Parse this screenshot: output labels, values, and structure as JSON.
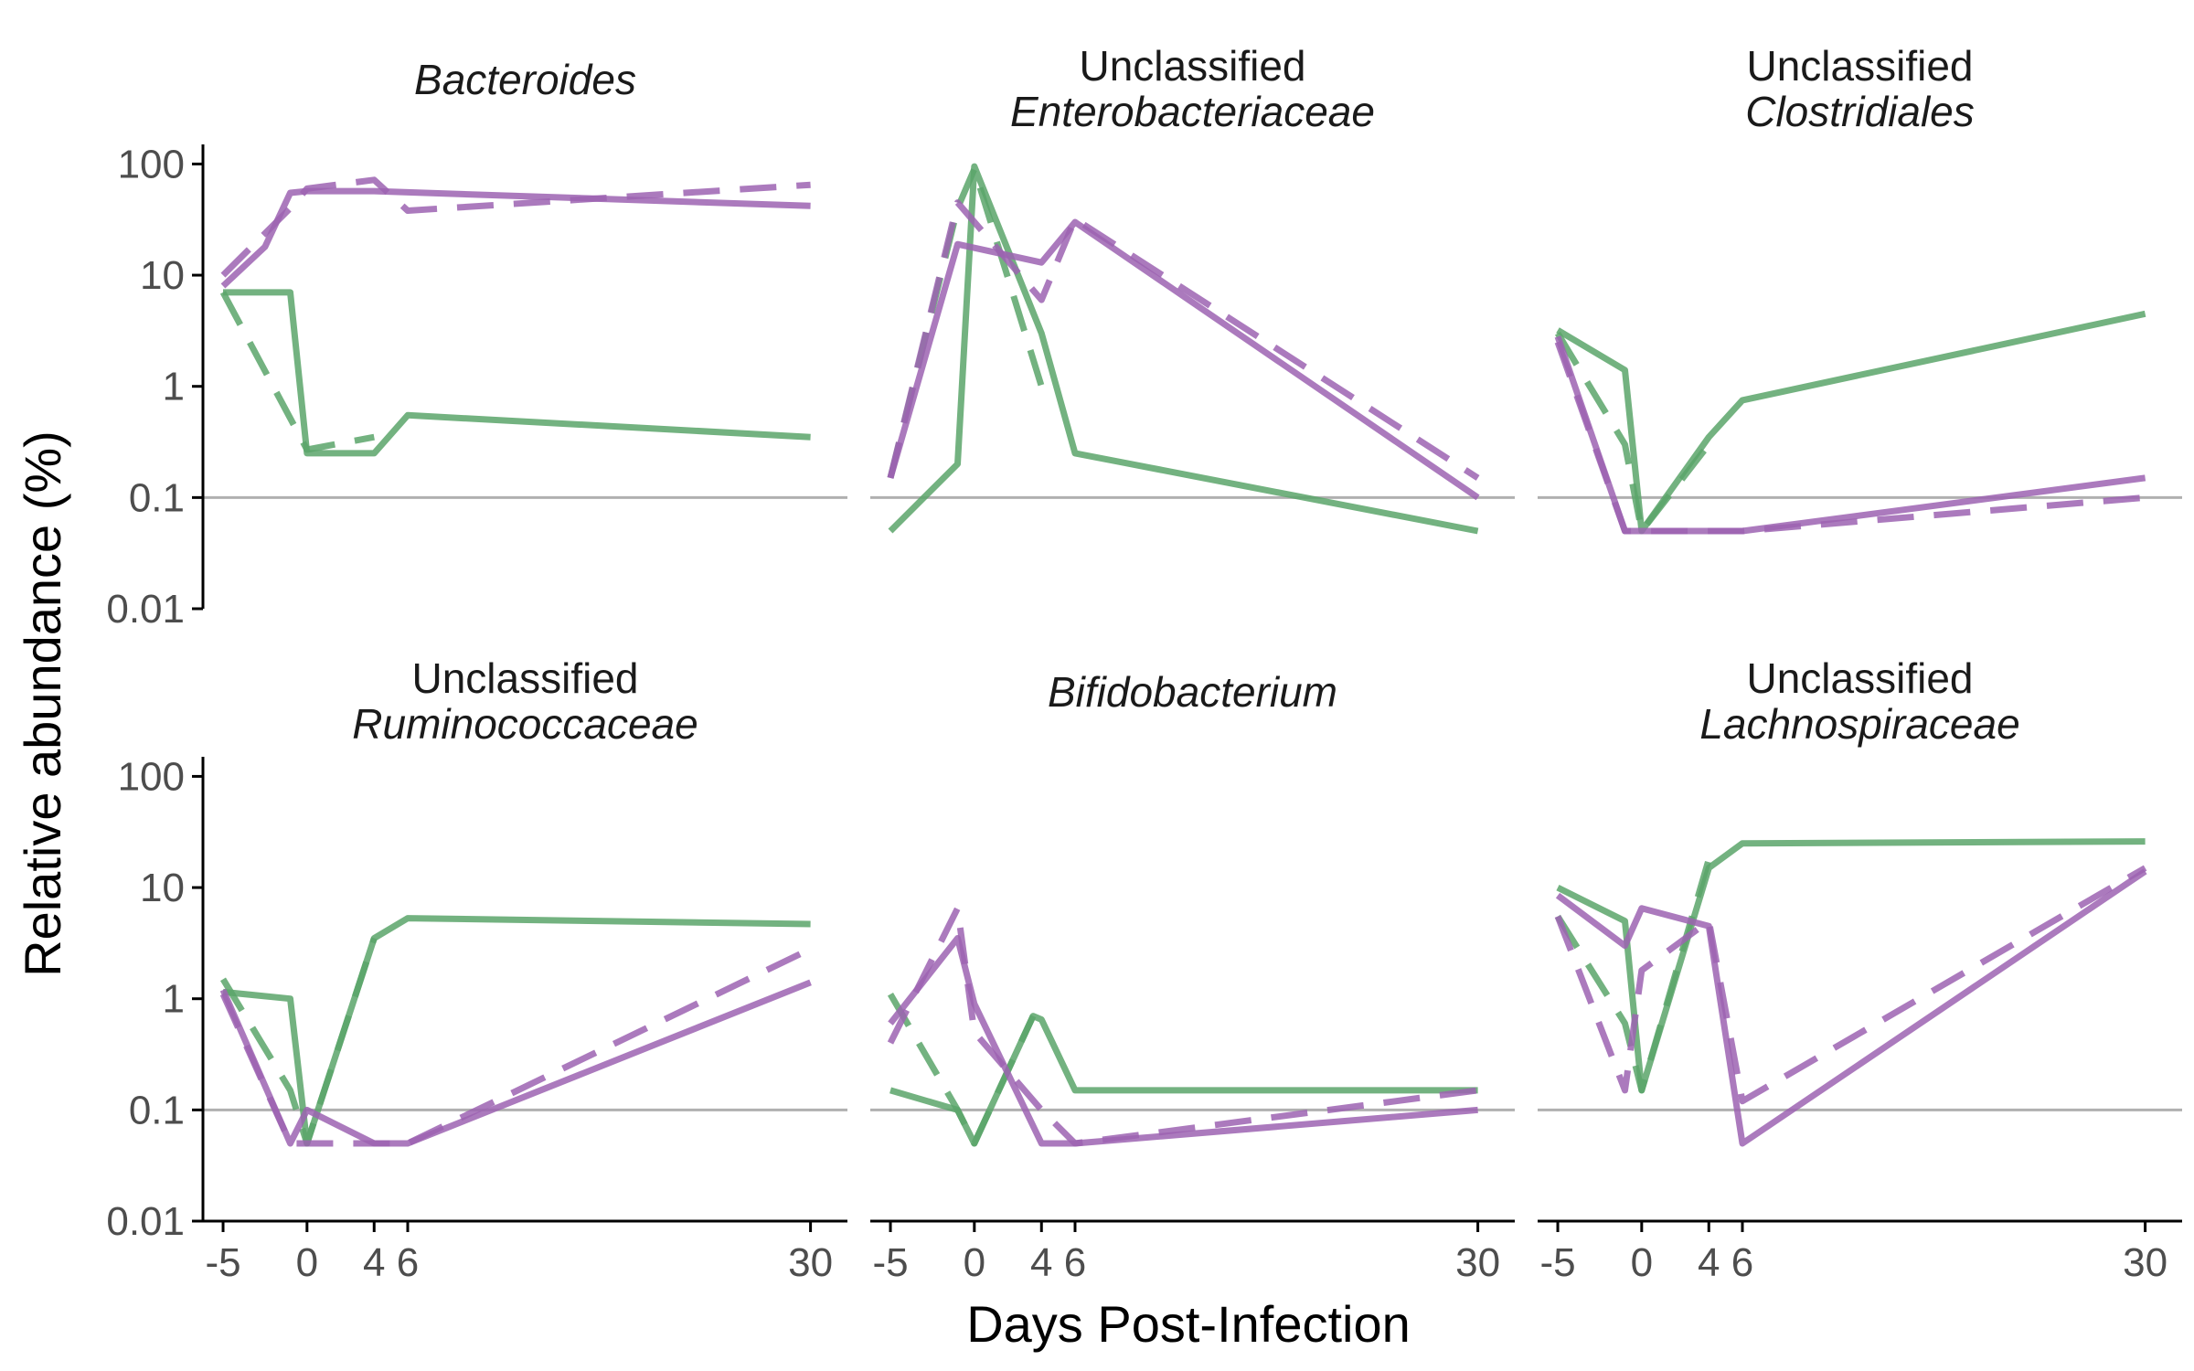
{
  "chart_data": {
    "type": "line",
    "layout": "facet 2x3",
    "xlabel": "Days Post-Infection",
    "ylabel": "Relative abundance (%)",
    "yscale": "log10",
    "ylim": [
      0.01,
      150
    ],
    "xlim": [
      -6.2,
      32.2
    ],
    "x_ticks": [
      -5,
      0,
      4,
      6,
      30
    ],
    "x_tick_labels": [
      "-5",
      "0",
      "4",
      "6",
      "30"
    ],
    "y_ticks": [
      0.01,
      0.1,
      1,
      10,
      100
    ],
    "y_tick_labels": [
      "0.01",
      "0.1",
      "1",
      "10",
      "100"
    ],
    "reference_line": 0.1,
    "grid": false,
    "legend": "none",
    "colors": {
      "green": "#5aa46a",
      "purple": "#9c63b2",
      "refline": "#b0b0b0",
      "axis": "#000000"
    },
    "series_styles": [
      {
        "color": "#5aa46a",
        "dash": "solid"
      },
      {
        "color": "#5aa46a",
        "dash": "dashed"
      },
      {
        "color": "#9c63b2",
        "dash": "solid"
      },
      {
        "color": "#9c63b2",
        "dash": "dashed"
      }
    ],
    "panels": [
      {
        "title_line1": "",
        "title_line2": "Bacteroides",
        "series": [
          {
            "style": 0,
            "x": [
              -5,
              -1,
              0,
              4,
              6,
              30
            ],
            "y": [
              7,
              7,
              0.25,
              0.25,
              0.55,
              0.35
            ]
          },
          {
            "style": 1,
            "x": [
              -5,
              0,
              4
            ],
            "y": [
              7,
              0.27,
              0.35
            ]
          },
          {
            "style": 2,
            "x": [
              -5,
              -2.5,
              -1,
              0,
              4,
              30
            ],
            "y": [
              8,
              18,
              55,
              57,
              57,
              42
            ]
          },
          {
            "style": 3,
            "x": [
              -5,
              -1,
              0,
              4,
              6,
              30
            ],
            "y": [
              10,
              40,
              60,
              72,
              38,
              65
            ]
          }
        ]
      },
      {
        "title_line1": "Unclassified",
        "title_line2": "Enterobacteriaceae",
        "series": [
          {
            "style": 0,
            "x": [
              -5,
              -1,
              0,
              4,
              6,
              30
            ],
            "y": [
              0.05,
              0.2,
              95,
              3,
              0.25,
              0.05
            ]
          },
          {
            "style": 1,
            "x": [
              -5,
              -1,
              0,
              4
            ],
            "y": [
              0.15,
              40,
              90,
              1
            ]
          },
          {
            "style": 2,
            "x": [
              -5,
              -1,
              4,
              6,
              30
            ],
            "y": [
              0.15,
              19,
              13,
              30,
              0.1
            ]
          },
          {
            "style": 3,
            "x": [
              -5,
              -1,
              4,
              6,
              30
            ],
            "y": [
              0.15,
              45,
              6,
              32,
              0.15
            ]
          }
        ]
      },
      {
        "title_line1": "Unclassified",
        "title_line2": "Clostridiales",
        "series": [
          {
            "style": 0,
            "x": [
              -5,
              -1,
              0,
              4,
              6,
              30
            ],
            "y": [
              3.2,
              1.4,
              0.05,
              0.35,
              0.75,
              4.5
            ]
          },
          {
            "style": 1,
            "x": [
              -5,
              -1,
              0,
              4
            ],
            "y": [
              3,
              0.3,
              0.05,
              0.3
            ]
          },
          {
            "style": 2,
            "x": [
              -5,
              -1,
              0,
              6,
              30
            ],
            "y": [
              2.8,
              0.05,
              0.05,
              0.05,
              0.15
            ]
          },
          {
            "style": 3,
            "x": [
              -5,
              -1,
              0,
              6,
              30
            ],
            "y": [
              2.5,
              0.05,
              0.05,
              0.05,
              0.1
            ]
          }
        ]
      },
      {
        "title_line1": "Unclassified",
        "title_line2": "Ruminococcaceae",
        "series": [
          {
            "style": 0,
            "x": [
              -5,
              -1,
              0,
              4,
              6,
              30
            ],
            "y": [
              1.15,
              1,
              0.05,
              3.5,
              5.3,
              4.7
            ]
          },
          {
            "style": 1,
            "x": [
              -5,
              -1,
              0,
              4
            ],
            "y": [
              1.5,
              0.15,
              0.05,
              3.5
            ]
          },
          {
            "style": 2,
            "x": [
              -5,
              -1,
              0,
              4,
              6,
              30
            ],
            "y": [
              1.2,
              0.05,
              0.1,
              0.05,
              0.05,
              1.4
            ]
          },
          {
            "style": 3,
            "x": [
              -5,
              -1,
              0,
              4,
              6,
              30
            ],
            "y": [
              1.1,
              0.05,
              0.05,
              0.05,
              0.05,
              2.8
            ]
          }
        ]
      },
      {
        "title_line1": "",
        "title_line2": "Bifidobacterium",
        "series": [
          {
            "style": 0,
            "x": [
              -5,
              -1,
              0,
              3.5,
              4,
              6,
              30
            ],
            "y": [
              0.15,
              0.1,
              0.05,
              0.7,
              0.65,
              0.15,
              0.15
            ]
          },
          {
            "style": 1,
            "x": [
              -5,
              -1,
              0,
              3.5
            ],
            "y": [
              1.1,
              0.1,
              0.05,
              0.7
            ]
          },
          {
            "style": 2,
            "x": [
              -5,
              -1,
              0,
              4,
              6,
              30
            ],
            "y": [
              0.6,
              3.5,
              0.9,
              0.05,
              0.05,
              0.1
            ]
          },
          {
            "style": 3,
            "x": [
              -5,
              -1,
              0,
              4,
              6,
              30
            ],
            "y": [
              0.4,
              6.5,
              0.5,
              0.1,
              0.05,
              0.15
            ]
          }
        ]
      },
      {
        "title_line1": "Unclassified",
        "title_line2": "Lachnospiraceae",
        "series": [
          {
            "style": 0,
            "x": [
              -5,
              -1,
              0,
              4,
              6,
              30
            ],
            "y": [
              10,
              5,
              0.15,
              15,
              25,
              26
            ]
          },
          {
            "style": 1,
            "x": [
              -5,
              -1,
              0,
              4
            ],
            "y": [
              5.5,
              0.6,
              0.15,
              18
            ]
          },
          {
            "style": 2,
            "x": [
              -5,
              -1,
              0,
              4,
              6,
              30
            ],
            "y": [
              8.5,
              3,
              6.5,
              4.5,
              0.05,
              14
            ]
          },
          {
            "style": 3,
            "x": [
              -5,
              -1,
              0,
              4,
              6,
              30
            ],
            "y": [
              5.5,
              0.15,
              1.8,
              5,
              0.12,
              15
            ]
          }
        ]
      }
    ]
  }
}
